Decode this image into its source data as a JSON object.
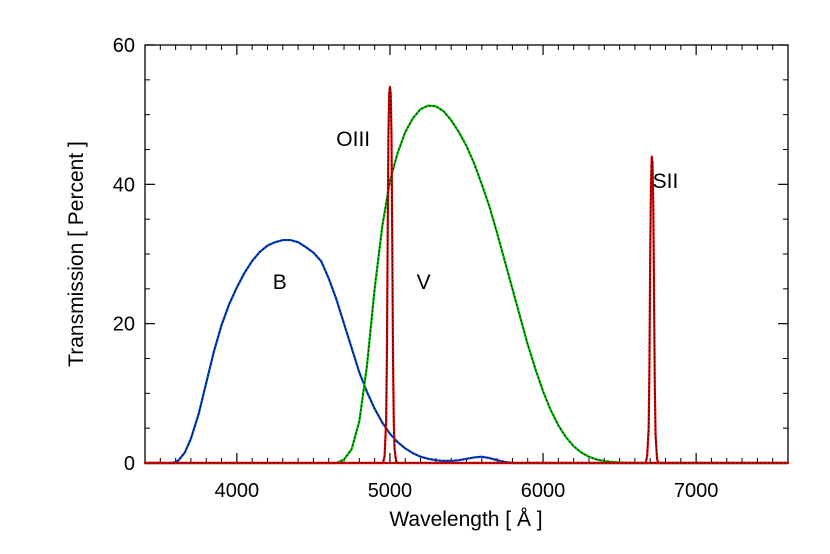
{
  "chart_data": {
    "type": "line",
    "xlabel": "Wavelength [ Å ]",
    "ylabel": "Transmission [ Percent ]",
    "xlim": [
      3400,
      7600
    ],
    "ylim": [
      0,
      60
    ],
    "x_ticks": [
      4000,
      5000,
      6000,
      7000
    ],
    "y_ticks": [
      0,
      20,
      40,
      60
    ],
    "x_minor_step": 100,
    "y_minor_step": 5,
    "grid": false,
    "series": [
      {
        "name": "B",
        "color": "#0044cc",
        "overlay_color": "#000000",
        "x": [
          3400,
          3580,
          3620,
          3660,
          3700,
          3750,
          3800,
          3850,
          3900,
          3950,
          4000,
          4050,
          4100,
          4150,
          4200,
          4250,
          4300,
          4350,
          4400,
          4450,
          4500,
          4550,
          4600,
          4650,
          4700,
          4750,
          4800,
          4850,
          4900,
          4950,
          5000,
          5050,
          5100,
          5150,
          5200,
          5250,
          5300,
          5350,
          5400,
          5450,
          5500,
          5550,
          5600,
          5650,
          5700,
          5750,
          5800,
          7600
        ],
        "values": [
          0,
          0,
          0.4,
          1.5,
          3.5,
          7.0,
          11.5,
          16.0,
          19.8,
          22.8,
          25.2,
          27.3,
          29.0,
          30.3,
          31.2,
          31.7,
          32.0,
          32.0,
          31.7,
          31.0,
          30.2,
          29.0,
          26.5,
          23.5,
          20.0,
          16.5,
          13.0,
          10.2,
          7.8,
          5.8,
          4.2,
          3.0,
          2.1,
          1.4,
          0.9,
          0.6,
          0.4,
          0.3,
          0.3,
          0.4,
          0.6,
          0.8,
          0.9,
          0.7,
          0.4,
          0.15,
          0,
          0
        ]
      },
      {
        "name": "V",
        "color": "#00bb00",
        "overlay_color": "#000000",
        "x": [
          3400,
          4650,
          4700,
          4750,
          4800,
          4850,
          4900,
          4950,
          5000,
          5050,
          5100,
          5150,
          5200,
          5250,
          5300,
          5350,
          5400,
          5450,
          5500,
          5550,
          5600,
          5650,
          5700,
          5750,
          5800,
          5850,
          5900,
          5950,
          6000,
          6050,
          6100,
          6150,
          6200,
          6250,
          6300,
          6350,
          6400,
          6450,
          6500,
          6550,
          6600,
          7600
        ],
        "values": [
          0,
          0,
          0.5,
          2.0,
          6.0,
          14.0,
          25.0,
          34.0,
          40.5,
          44.5,
          47.5,
          49.5,
          50.8,
          51.3,
          51.2,
          50.5,
          49.2,
          47.5,
          45.5,
          43.0,
          40.0,
          36.8,
          33.0,
          29.0,
          25.0,
          21.0,
          17.0,
          13.5,
          10.3,
          7.6,
          5.4,
          3.7,
          2.4,
          1.5,
          0.9,
          0.5,
          0.3,
          0.15,
          0.08,
          0.03,
          0,
          0
        ]
      },
      {
        "name": "OIII",
        "color": "#dd0000",
        "overlay_color": "#000000",
        "x": [
          3400,
          4955,
          4965,
          4975,
          4980,
          4985,
          4990,
          4995,
          5000,
          5005,
          5010,
          5015,
          5020,
          5025,
          5030,
          5040,
          5050,
          7600
        ],
        "values": [
          0,
          0,
          1.0,
          6.0,
          15.0,
          32.0,
          47.0,
          53.0,
          54.0,
          53.0,
          47.0,
          32.0,
          15.0,
          6.0,
          2.0,
          0.3,
          0,
          0
        ]
      },
      {
        "name": "SII",
        "color": "#dd0000",
        "overlay_color": "#000000",
        "x": [
          3400,
          6670,
          6680,
          6690,
          6695,
          6700,
          6705,
          6710,
          6715,
          6720,
          6725,
          6730,
          6735,
          6745,
          6755,
          7600
        ],
        "values": [
          0,
          0,
          1.0,
          5.0,
          14.0,
          30.0,
          40.0,
          44.0,
          43.0,
          37.0,
          24.0,
          11.0,
          4.0,
          0.5,
          0,
          0
        ]
      }
    ],
    "annotations": [
      {
        "text": "OIII",
        "x": 4760,
        "y": 45.5
      },
      {
        "text": "V",
        "x": 5220,
        "y": 25
      },
      {
        "text": "B",
        "x": 4280,
        "y": 25
      },
      {
        "text": "SII",
        "x": 6800,
        "y": 39.5
      }
    ]
  }
}
